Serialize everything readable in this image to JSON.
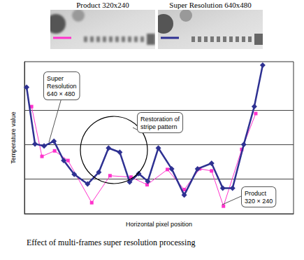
{
  "chart_data": {
    "type": "line",
    "caption": "Effect of multi-frames super resolution processing",
    "xlabel": "Horizontal pixel position",
    "ylabel": "Temperature value",
    "images": [
      {
        "title": "Product 320x240",
        "series": "Product"
      },
      {
        "title": "Super Resolution 640x480",
        "series": "Super Resolution"
      }
    ],
    "annotations": [
      {
        "text": "Super\nResolution\n640 × 480",
        "series": "Super Resolution"
      },
      {
        "text": "Restoration of\nstripe pattern"
      },
      {
        "text": "Product\n320 × 240",
        "series": "Product"
      }
    ],
    "xlim": [
      0,
      24
    ],
    "ylim": [
      0,
      4.4
    ],
    "yticks": [
      1,
      2,
      3
    ],
    "grid": true,
    "tick_labels": false,
    "series": [
      {
        "name": "Product",
        "color": "#ff33cc",
        "marker": "square",
        "x": [
          0.63,
          1.56,
          2.69,
          3.88,
          6.0,
          7.63,
          9.5,
          10.94,
          12.75,
          14.25,
          15.63,
          16.69,
          17.75,
          19.38,
          20.63
        ],
        "values": [
          3.1,
          1.66,
          1.82,
          1.54,
          0.32,
          1.1,
          1.06,
          0.84,
          1.28,
          0.7,
          1.3,
          1.24,
          0.22,
          1.86,
          2.9
        ]
      },
      {
        "name": "Super Resolution",
        "color": "#2e3192",
        "marker": "diamond",
        "x": [
          0.19,
          0.94,
          1.75,
          2.63,
          3.5,
          4.44,
          5.63,
          6.63,
          7.5,
          8.5,
          9.38,
          10.19,
          11.0,
          11.94,
          13.13,
          14.25,
          15.44,
          16.69,
          17.69,
          18.56,
          19.56,
          20.5,
          21.25
        ],
        "values": [
          3.66,
          2.02,
          1.96,
          2.1,
          1.54,
          1.14,
          0.86,
          1.2,
          1.9,
          1.78,
          0.92,
          1.16,
          0.94,
          1.9,
          1.3,
          0.54,
          1.3,
          1.46,
          0.74,
          0.74,
          2.0,
          3.1,
          4.3
        ]
      }
    ]
  }
}
